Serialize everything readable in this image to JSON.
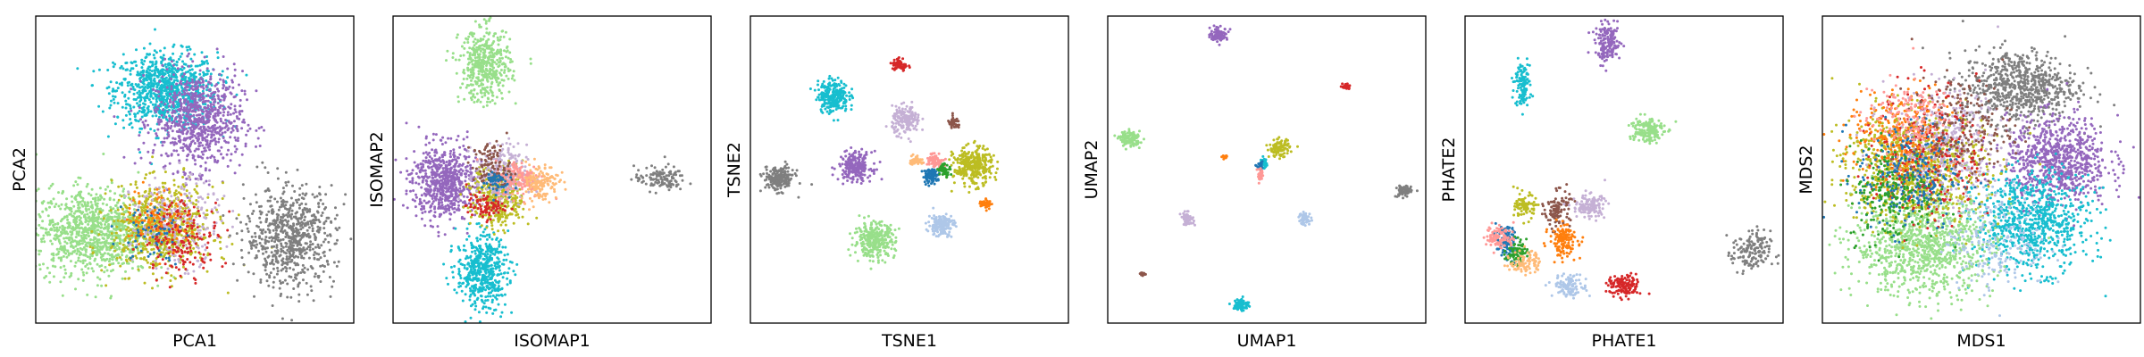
{
  "chart_data": [
    {
      "type": "scatter",
      "title": "",
      "xlabel": "PCA1",
      "ylabel": "PCA2",
      "xlim": [
        0,
        100
      ],
      "ylim": [
        0,
        100
      ],
      "ticks": "none",
      "grid": false,
      "legend": "none",
      "clusters": [
        {
          "color": "#17becf",
          "center": [
            41,
            76
          ],
          "spread": [
            8,
            6
          ],
          "n": 900
        },
        {
          "color": "#9467bd",
          "center": [
            51,
            66
          ],
          "spread": [
            7,
            8
          ],
          "n": 800
        },
        {
          "color": "#98df8a",
          "center": [
            18,
            30
          ],
          "spread": [
            9,
            7
          ],
          "n": 1000
        },
        {
          "color": "#bcbd22",
          "center": [
            40,
            31
          ],
          "spread": [
            8,
            7
          ],
          "n": 700
        },
        {
          "color": "#c5b0d5",
          "center": [
            44,
            33
          ],
          "spread": [
            7,
            7
          ],
          "n": 250
        },
        {
          "color": "#d62728",
          "center": [
            46,
            28
          ],
          "spread": [
            6,
            6
          ],
          "n": 180
        },
        {
          "color": "#ff7f0e",
          "center": [
            38,
            34
          ],
          "spread": [
            5,
            5
          ],
          "n": 100
        },
        {
          "color": "#1f77b4",
          "center": [
            36,
            30
          ],
          "spread": [
            5,
            5
          ],
          "n": 60
        },
        {
          "color": "#7f7f7f",
          "center": [
            80,
            28
          ],
          "spread": [
            7,
            8
          ],
          "n": 700
        }
      ]
    },
    {
      "type": "scatter",
      "title": "",
      "xlabel": "ISOMAP1",
      "ylabel": "ISOMAP2",
      "xlim": [
        0,
        100
      ],
      "ylim": [
        0,
        100
      ],
      "ticks": "none",
      "grid": false,
      "legend": "none",
      "clusters": [
        {
          "color": "#98df8a",
          "center": [
            29,
            84
          ],
          "spread": [
            4,
            6
          ],
          "n": 450
        },
        {
          "color": "#9467bd",
          "center": [
            16,
            46
          ],
          "spread": [
            5,
            6
          ],
          "n": 650
        },
        {
          "color": "#17becf",
          "center": [
            28,
            17
          ],
          "spread": [
            4,
            6
          ],
          "n": 500
        },
        {
          "color": "#bcbd22",
          "center": [
            33,
            41
          ],
          "spread": [
            4,
            5
          ],
          "n": 380
        },
        {
          "color": "#c5b0d5",
          "center": [
            34,
            48
          ],
          "spread": [
            4,
            5
          ],
          "n": 250
        },
        {
          "color": "#ff9896",
          "center": [
            40,
            47
          ],
          "spread": [
            4,
            3
          ],
          "n": 160
        },
        {
          "color": "#ffbb78",
          "center": [
            46,
            46
          ],
          "spread": [
            3,
            3
          ],
          "n": 140
        },
        {
          "color": "#8c564b",
          "center": [
            31,
            51
          ],
          "spread": [
            3,
            4
          ],
          "n": 110
        },
        {
          "color": "#d62728",
          "center": [
            29,
            38
          ],
          "spread": [
            3,
            2
          ],
          "n": 80
        },
        {
          "color": "#1f77b4",
          "center": [
            32,
            46
          ],
          "spread": [
            2,
            2
          ],
          "n": 50
        },
        {
          "color": "#7f7f7f",
          "center": [
            84,
            47
          ],
          "spread": [
            4,
            2
          ],
          "n": 120
        }
      ]
    },
    {
      "type": "scatter",
      "title": "",
      "xlabel": "TSNE1",
      "ylabel": "TSNE2",
      "xlim": [
        0,
        100
      ],
      "ylim": [
        0,
        100
      ],
      "ticks": "none",
      "grid": false,
      "legend": "none",
      "clusters": [
        {
          "color": "#17becf",
          "center": [
            26,
            74
          ],
          "spread": [
            2.4,
            2.6
          ],
          "n": 260
        },
        {
          "color": "#d62728",
          "center": [
            47,
            84
          ],
          "spread": [
            1.2,
            1.2
          ],
          "n": 60
        },
        {
          "color": "#c5b0d5",
          "center": [
            49,
            66
          ],
          "spread": [
            2.2,
            2.2
          ],
          "n": 180
        },
        {
          "color": "#8c564b",
          "center": [
            64,
            65
          ],
          "spread": [
            1.0,
            1.0
          ],
          "n": 40
        },
        {
          "color": "#9467bd",
          "center": [
            33,
            51
          ],
          "spread": [
            2.6,
            2.4
          ],
          "n": 220
        },
        {
          "color": "#7f7f7f",
          "center": [
            9,
            47
          ],
          "spread": [
            2.4,
            2.0
          ],
          "n": 200
        },
        {
          "color": "#bcbd22",
          "center": [
            70,
            51
          ],
          "spread": [
            3.0,
            3.0
          ],
          "n": 320
        },
        {
          "color": "#ff9896",
          "center": [
            58,
            53
          ],
          "spread": [
            1.4,
            1.2
          ],
          "n": 70
        },
        {
          "color": "#1f77b4",
          "center": [
            57,
            48
          ],
          "spread": [
            1.4,
            1.2
          ],
          "n": 80
        },
        {
          "color": "#2ca02c",
          "center": [
            61,
            50
          ],
          "spread": [
            1.0,
            1.0
          ],
          "n": 50
        },
        {
          "color": "#ffbb78",
          "center": [
            52,
            53
          ],
          "spread": [
            1.0,
            0.8
          ],
          "n": 40
        },
        {
          "color": "#ff7f0e",
          "center": [
            74,
            39
          ],
          "spread": [
            1.0,
            0.8
          ],
          "n": 40
        },
        {
          "color": "#aec7e8",
          "center": [
            60,
            32
          ],
          "spread": [
            2.0,
            1.8
          ],
          "n": 160
        },
        {
          "color": "#98df8a",
          "center": [
            39,
            27
          ],
          "spread": [
            3.2,
            2.8
          ],
          "n": 320
        }
      ]
    },
    {
      "type": "scatter",
      "title": "",
      "xlabel": "UMAP1",
      "ylabel": "UMAP2",
      "xlim": [
        0,
        100
      ],
      "ylim": [
        0,
        100
      ],
      "ticks": "none",
      "grid": false,
      "legend": "none",
      "clusters": [
        {
          "color": "#9467bd",
          "center": [
            35,
            94
          ],
          "spread": [
            1.4,
            1.0
          ],
          "n": 110
        },
        {
          "color": "#d62728",
          "center": [
            75,
            77
          ],
          "spread": [
            0.6,
            0.6
          ],
          "n": 25
        },
        {
          "color": "#98df8a",
          "center": [
            7,
            60
          ],
          "spread": [
            1.6,
            1.2
          ],
          "n": 120
        },
        {
          "color": "#bcbd22",
          "center": [
            54,
            57
          ],
          "spread": [
            1.6,
            1.4
          ],
          "n": 110
        },
        {
          "color": "#17becf",
          "center": [
            49,
            52
          ],
          "spread": [
            0.6,
            0.8
          ],
          "n": 40
        },
        {
          "color": "#1f77b4",
          "center": [
            48,
            51
          ],
          "spread": [
            0.5,
            0.5
          ],
          "n": 25
        },
        {
          "color": "#ff9896",
          "center": [
            48,
            48
          ],
          "spread": [
            0.5,
            1.2
          ],
          "n": 30
        },
        {
          "color": "#ff7f0e",
          "center": [
            37,
            54
          ],
          "spread": [
            0.5,
            0.4
          ],
          "n": 12
        },
        {
          "color": "#7f7f7f",
          "center": [
            93,
            43
          ],
          "spread": [
            1.2,
            1.0
          ],
          "n": 70
        },
        {
          "color": "#c5b0d5",
          "center": [
            25,
            34
          ],
          "spread": [
            1.0,
            1.0
          ],
          "n": 55
        },
        {
          "color": "#aec7e8",
          "center": [
            62,
            34
          ],
          "spread": [
            1.0,
            1.0
          ],
          "n": 55
        },
        {
          "color": "#8c564b",
          "center": [
            11,
            16
          ],
          "spread": [
            0.4,
            0.4
          ],
          "n": 10
        },
        {
          "color": "#17becf",
          "center": [
            42,
            6
          ],
          "spread": [
            1.2,
            1.0
          ],
          "n": 90
        }
      ]
    },
    {
      "type": "scatter",
      "title": "",
      "xlabel": "PHATE1",
      "ylabel": "PHATE2",
      "xlim": [
        0,
        100
      ],
      "ylim": [
        0,
        100
      ],
      "ticks": "none",
      "grid": false,
      "legend": "none",
      "clusters": [
        {
          "color": "#9467bd",
          "center": [
            45,
            91
          ],
          "spread": [
            2.0,
            3.0
          ],
          "n": 160
        },
        {
          "color": "#17becf",
          "center": [
            18,
            78
          ],
          "spread": [
            1.2,
            3.5
          ],
          "n": 120
        },
        {
          "color": "#98df8a",
          "center": [
            57,
            63
          ],
          "spread": [
            2.8,
            2.2
          ],
          "n": 160
        },
        {
          "color": "#bcbd22",
          "center": [
            19,
            38
          ],
          "spread": [
            1.6,
            2.0
          ],
          "n": 90
        },
        {
          "color": "#8c564b",
          "center": [
            29,
            37
          ],
          "spread": [
            2.0,
            3.0
          ],
          "n": 110
        },
        {
          "color": "#c5b0d5",
          "center": [
            39,
            38
          ],
          "spread": [
            2.6,
            2.0
          ],
          "n": 130
        },
        {
          "color": "#ff7f0e",
          "center": [
            31,
            27
          ],
          "spread": [
            2.2,
            2.6
          ],
          "n": 140
        },
        {
          "color": "#1f77b4",
          "center": [
            13,
            26
          ],
          "spread": [
            1.6,
            2.8
          ],
          "n": 100
        },
        {
          "color": "#2ca02c",
          "center": [
            16,
            23
          ],
          "spread": [
            1.6,
            2.0
          ],
          "n": 80
        },
        {
          "color": "#ff9896",
          "center": [
            11,
            28
          ],
          "spread": [
            2.2,
            2.0
          ],
          "n": 90
        },
        {
          "color": "#ffbb78",
          "center": [
            19,
            20
          ],
          "spread": [
            2.4,
            2.0
          ],
          "n": 90
        },
        {
          "color": "#aec7e8",
          "center": [
            33,
            12
          ],
          "spread": [
            2.6,
            1.8
          ],
          "n": 120
        },
        {
          "color": "#d62728",
          "center": [
            50,
            12
          ],
          "spread": [
            2.6,
            1.8
          ],
          "n": 130
        },
        {
          "color": "#7f7f7f",
          "center": [
            90,
            23
          ],
          "spread": [
            3.0,
            3.5
          ],
          "n": 150
        }
      ]
    },
    {
      "type": "scatter",
      "title": "",
      "xlabel": "MDS1",
      "ylabel": "MDS2",
      "xlim": [
        0,
        100
      ],
      "ylim": [
        0,
        100
      ],
      "ticks": "none",
      "grid": false,
      "legend": "none",
      "clusters": [
        {
          "color": "#7f7f7f",
          "center": [
            62,
            77
          ],
          "spread": [
            9,
            6
          ],
          "n": 700
        },
        {
          "color": "#9467bd",
          "center": [
            74,
            53
          ],
          "spread": [
            8,
            7
          ],
          "n": 800
        },
        {
          "color": "#17becf",
          "center": [
            66,
            33
          ],
          "spread": [
            9,
            8
          ],
          "n": 800
        },
        {
          "color": "#98df8a",
          "center": [
            32,
            25
          ],
          "spread": [
            11,
            8
          ],
          "n": 1000
        },
        {
          "color": "#bcbd22",
          "center": [
            29,
            51
          ],
          "spread": [
            11,
            9
          ],
          "n": 900
        },
        {
          "color": "#c5b0d5",
          "center": [
            38,
            58
          ],
          "spread": [
            9,
            9
          ],
          "n": 400
        },
        {
          "color": "#d62728",
          "center": [
            33,
            55
          ],
          "spread": [
            8,
            11
          ],
          "n": 300
        },
        {
          "color": "#ff7f0e",
          "center": [
            24,
            60
          ],
          "spread": [
            8,
            8
          ],
          "n": 250
        },
        {
          "color": "#1f77b4",
          "center": [
            27,
            48
          ],
          "spread": [
            8,
            9
          ],
          "n": 250
        },
        {
          "color": "#2ca02c",
          "center": [
            22,
            42
          ],
          "spread": [
            7,
            8
          ],
          "n": 200
        },
        {
          "color": "#8c564b",
          "center": [
            44,
            64
          ],
          "spread": [
            8,
            8
          ],
          "n": 200
        },
        {
          "color": "#ff9896",
          "center": [
            26,
            68
          ],
          "spread": [
            7,
            6
          ],
          "n": 150
        },
        {
          "color": "#aec7e8",
          "center": [
            55,
            27
          ],
          "spread": [
            8,
            8
          ],
          "n": 200
        }
      ]
    }
  ]
}
